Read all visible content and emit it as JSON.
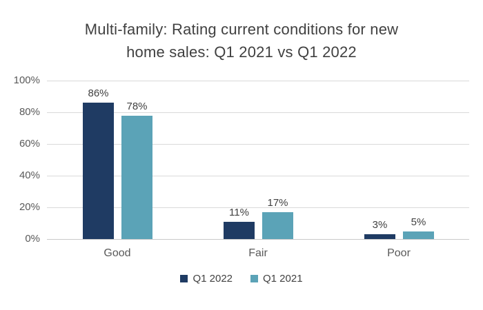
{
  "chart_data": {
    "type": "bar",
    "title": "Multi-family: Rating current conditions for new home sales: Q1 2021 vs Q1 2022",
    "title_lines": [
      "Multi-family: Rating current conditions for new",
      "home sales: Q1 2021 vs Q1 2022"
    ],
    "categories": [
      "Good",
      "Fair",
      "Poor"
    ],
    "series": [
      {
        "name": "Q1 2022",
        "color": "#1F3B63",
        "values": [
          86,
          11,
          3
        ],
        "labels": [
          "86%",
          "11%",
          "3%"
        ]
      },
      {
        "name": "Q1 2021",
        "color": "#5BA3B7",
        "values": [
          78,
          17,
          5
        ],
        "labels": [
          "78%",
          "17%",
          "5%"
        ]
      }
    ],
    "y_axis": {
      "tick_labels": [
        "0%",
        "20%",
        "40%",
        "60%",
        "80%",
        "100%"
      ],
      "tick_values": [
        0,
        20,
        40,
        60,
        80,
        100
      ],
      "min": 0,
      "max": 100,
      "grid": true
    },
    "legend_position": "bottom",
    "colors": {
      "grid": "#D9D9D9",
      "axis": "#C9C9C9",
      "title_text": "#404040",
      "axis_text": "#595959",
      "value_label_text": "#404040"
    }
  }
}
